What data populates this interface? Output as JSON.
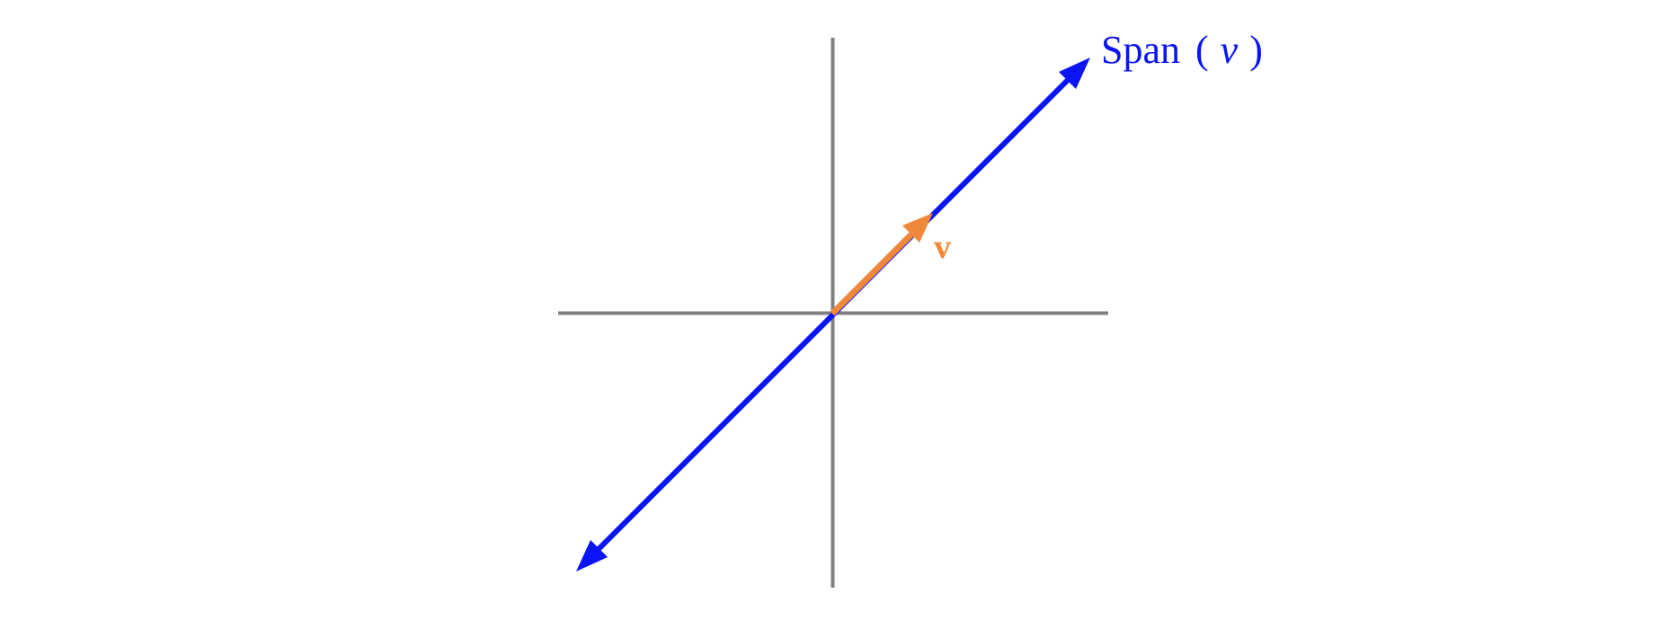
{
  "labels": {
    "span_text": "Span",
    "span_open": "(",
    "span_var": "v",
    "span_close": ")",
    "vector_label": "v"
  },
  "colors": {
    "axes": "#808080",
    "span_line": "#0a14f5",
    "vector": "#f0883a",
    "background": "#ffffff"
  }
}
